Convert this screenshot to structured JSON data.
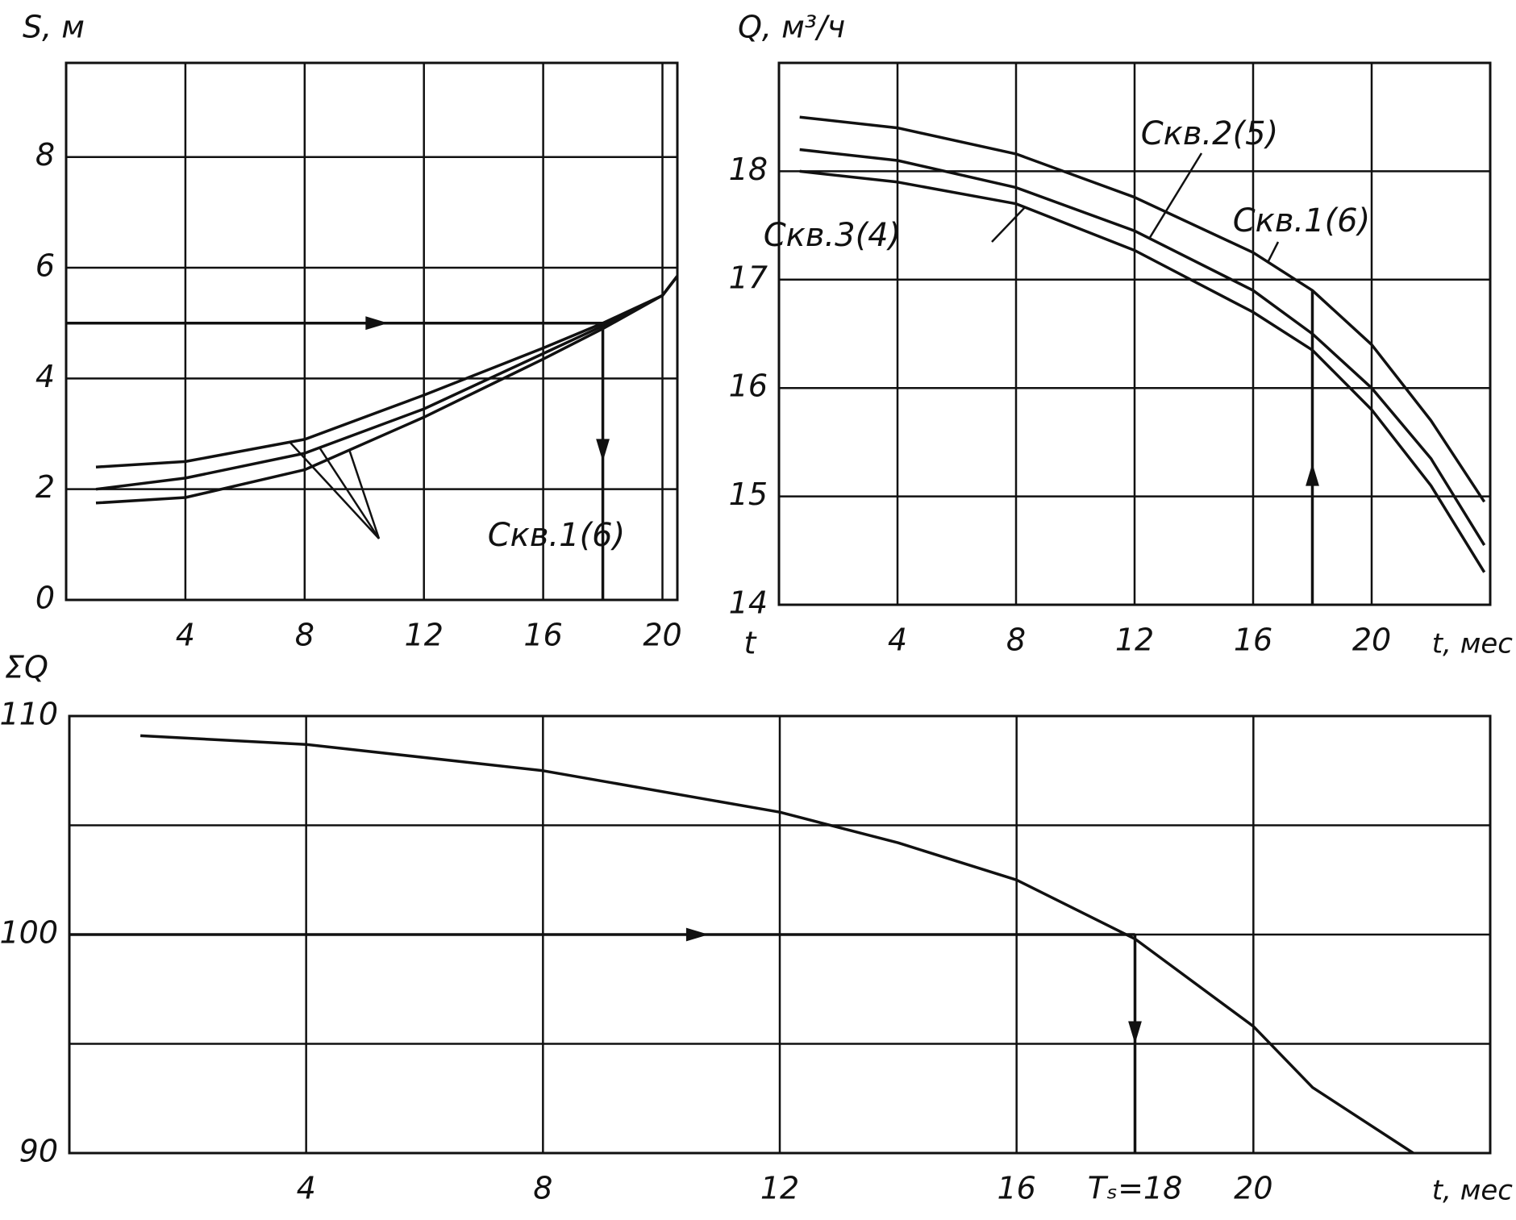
{
  "chart_data": [
    {
      "type": "line",
      "ylabel": "S, м",
      "label": "Скв.1(6)",
      "xlim": [
        0,
        20.5
      ],
      "xticks": [
        4,
        8,
        12,
        16,
        20
      ],
      "ylim": [
        0,
        9.7
      ],
      "yticks": [
        0,
        2,
        4,
        6,
        8
      ],
      "ygrid": [
        2,
        4,
        6,
        8
      ],
      "grid": true,
      "x": [
        1,
        4,
        8,
        12,
        16,
        18,
        20,
        20.5
      ],
      "series": [
        {
          "color": "#111111",
          "values": [
            2.4,
            2.5,
            2.9,
            3.7,
            4.55,
            5.0,
            5.5,
            5.85
          ]
        },
        {
          "color": "#111111",
          "values": [
            2.0,
            2.2,
            2.65,
            3.45,
            4.45,
            4.95,
            5.5,
            5.85
          ]
        },
        {
          "color": "#111111",
          "values": [
            1.75,
            1.85,
            2.35,
            3.3,
            4.35,
            4.9,
            5.5,
            5.85
          ]
        }
      ],
      "guide": {
        "x": 18,
        "y": 5
      }
    },
    {
      "type": "line",
      "ylabel": "Q, м³/ч",
      "xlabel": "t, мес",
      "annotations": [
        "t"
      ],
      "xlim": [
        0,
        24
      ],
      "xticks": [
        4,
        8,
        12,
        16,
        20
      ],
      "ylim": [
        14,
        19
      ],
      "yticks": [
        14,
        15,
        16,
        17,
        18
      ],
      "ygrid": [
        15,
        16,
        17,
        18
      ],
      "grid": true,
      "x": [
        0.7,
        4,
        8,
        12,
        16,
        18,
        20,
        22,
        23.8
      ],
      "series": [
        {
          "name": "Скв.1(6)",
          "color": "#111111",
          "values": [
            18.5,
            18.4,
            18.16,
            17.76,
            17.25,
            16.9,
            16.4,
            15.7,
            14.95
          ]
        },
        {
          "name": "Скв.2(5)",
          "color": "#111111",
          "values": [
            18.2,
            18.1,
            17.85,
            17.45,
            16.9,
            16.5,
            16.0,
            15.35,
            14.55
          ]
        },
        {
          "name": "Скв.3(4)",
          "color": "#111111",
          "values": [
            18.0,
            17.9,
            17.7,
            17.27,
            16.7,
            16.35,
            15.8,
            15.1,
            14.3
          ]
        }
      ],
      "guide": {
        "x": 18,
        "y": 16.9
      }
    },
    {
      "type": "line",
      "ylabel": "ΣQ",
      "xlabel": "t, мес",
      "xlim": [
        0,
        24
      ],
      "xticks": [
        4,
        8,
        12,
        16,
        {
          "value": 18,
          "label": "Tₛ=18"
        },
        20
      ],
      "xgrid": [
        4,
        8,
        12,
        16,
        20
      ],
      "ylim": [
        90,
        110
      ],
      "yticks": [
        90,
        100,
        110
      ],
      "ygrid": [
        95,
        100,
        105
      ],
      "grid": true,
      "x": [
        1.2,
        4,
        8,
        12,
        14,
        16,
        18,
        20,
        21,
        22.7
      ],
      "series": [
        {
          "color": "#111111",
          "values": [
            109.1,
            108.7,
            107.5,
            105.6,
            104.2,
            102.5,
            99.8,
            95.8,
            93.0,
            90
          ]
        }
      ],
      "guide": {
        "x": 18,
        "y": 100
      }
    }
  ]
}
